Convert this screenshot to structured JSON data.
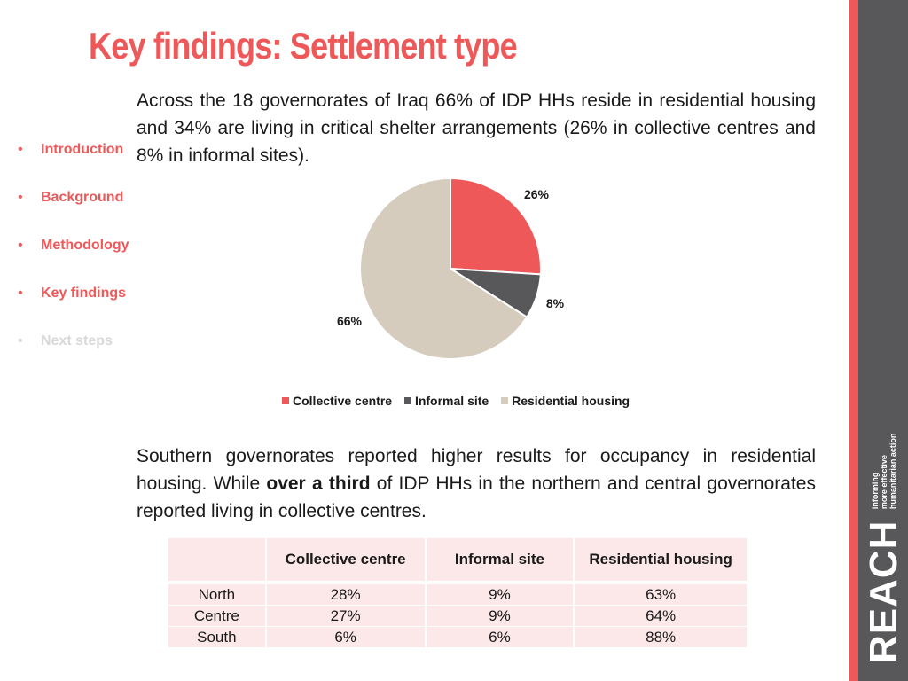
{
  "title": "Key findings: Settlement type",
  "paragraph1": "Across the 18 governorates of Iraq 66% of IDP HHs reside in residential housing and 34% are living in critical shelter arrangements (26%  in collective centres and 8% in informal sites).",
  "paragraph2": {
    "before": "Southern governorates reported higher results for occupancy in residential housing. While ",
    "bold": "over a third",
    "after": " of IDP HHs in the northern and central governorates reported living in collective centres."
  },
  "nav": {
    "bullet": "•",
    "items": [
      {
        "label": "Introduction",
        "active": true
      },
      {
        "label": "Background",
        "active": true
      },
      {
        "label": "Methodology",
        "active": true
      },
      {
        "label": "Key findings",
        "active": true
      },
      {
        "label": "Next steps",
        "active": false
      }
    ]
  },
  "colors": {
    "collective_centre": "#ee5859",
    "informal_site": "#58585a",
    "residential_housing": "#d5ccbd",
    "accent": "#ee5859"
  },
  "chart_data": {
    "type": "pie",
    "title": "",
    "categories": [
      "Collective centre",
      "Informal site",
      "Residential housing"
    ],
    "values": [
      26,
      8,
      66
    ],
    "labels": [
      "26%",
      "8%",
      "66%"
    ],
    "colors": [
      "#ee5859",
      "#58585a",
      "#d5ccbd"
    ],
    "legend_position": "bottom"
  },
  "table": {
    "headers": [
      "",
      "Collective centre",
      "Informal site",
      "Residential housing"
    ],
    "rows": [
      [
        "North",
        "28%",
        "9%",
        "63%"
      ],
      [
        "Centre",
        "27%",
        "9%",
        "64%"
      ],
      [
        "South",
        "6%",
        "6%",
        "88%"
      ]
    ]
  },
  "logo": {
    "word": "REACH",
    "tagline": [
      "Informing",
      "more effective",
      "humanitarian action"
    ]
  }
}
